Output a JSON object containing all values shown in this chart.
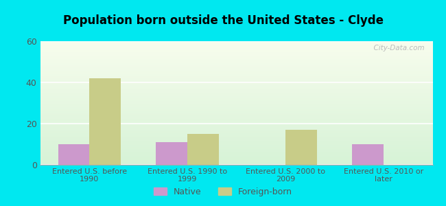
{
  "title": "Population born outside the United States - Clyde",
  "categories": [
    "Entered U.S. before\n1990",
    "Entered U.S. 1990 to\n1999",
    "Entered U.S. 2000 to\n2009",
    "Entered U.S. 2010 or\nlater"
  ],
  "native_values": [
    10,
    11,
    0,
    10
  ],
  "foreign_values": [
    42,
    15,
    17,
    0
  ],
  "native_color": "#cc99cc",
  "foreign_color": "#c8cc88",
  "background_outer": "#00e8f0",
  "ylim": [
    0,
    60
  ],
  "yticks": [
    0,
    20,
    40,
    60
  ],
  "bar_width": 0.32,
  "legend_native": "Native",
  "legend_foreign": "Foreign-born",
  "watermark": "  City-Data.com"
}
